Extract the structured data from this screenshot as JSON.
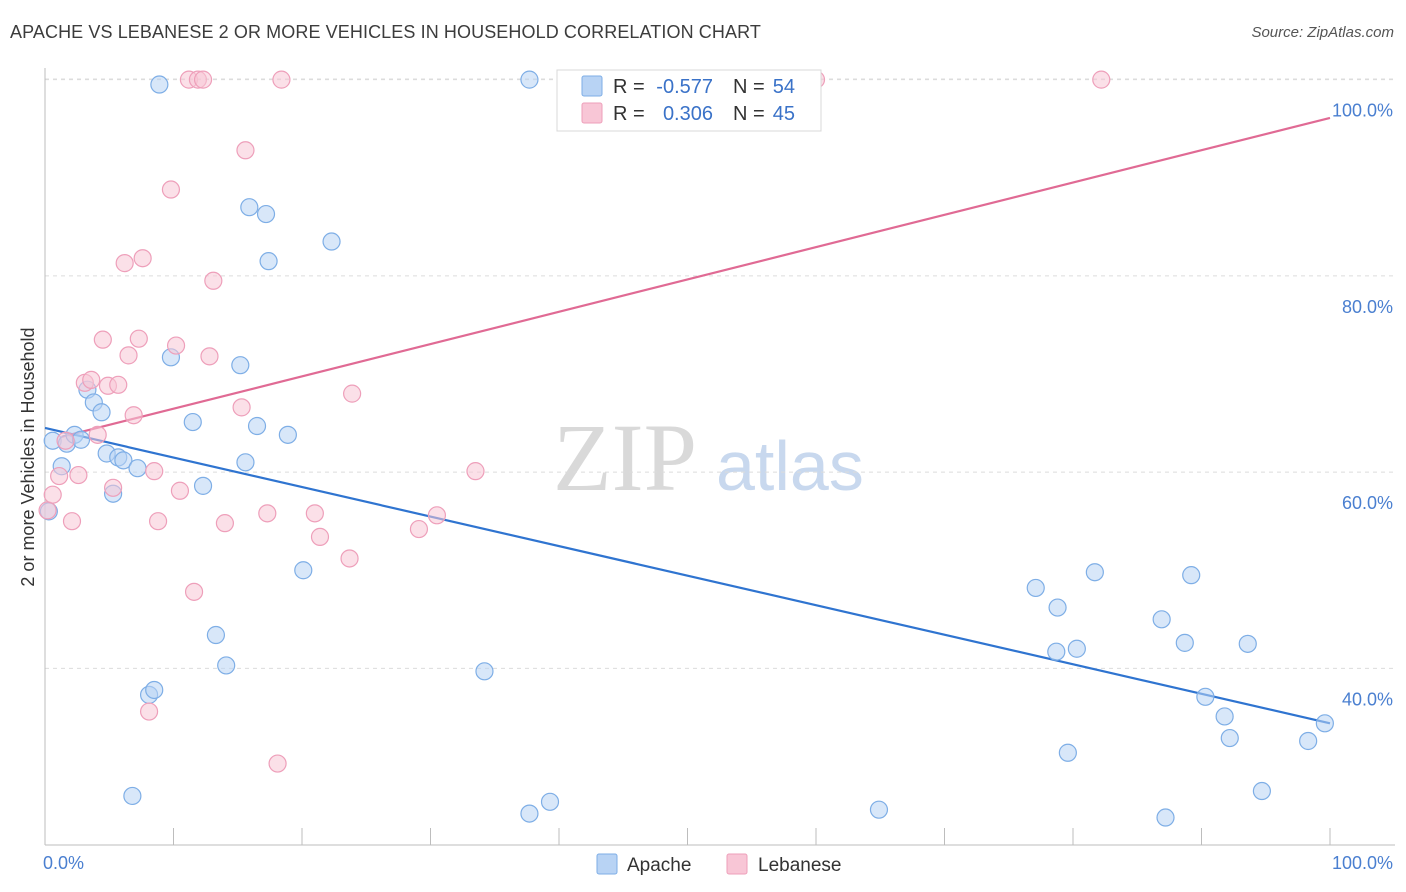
{
  "header": {
    "title": "APACHE VS LEBANESE 2 OR MORE VEHICLES IN HOUSEHOLD CORRELATION CHART",
    "source": "Source: ZipAtlas.com"
  },
  "watermark": {
    "zip": "ZIP",
    "atlas": "atlas"
  },
  "colors": {
    "apache_fill": "#b8d3f4",
    "apache_stroke": "#7eaee6",
    "apache_line": "#2f74d0",
    "lebanese_fill": "#f8c6d6",
    "lebanese_stroke": "#ee9fba",
    "lebanese_line": "#e06a94",
    "tick_label": "#4a7fd0"
  },
  "stats_legend": {
    "rows": [
      {
        "r_label": "R =",
        "r_value": "-0.577",
        "n_label": "N =",
        "n_value": "54"
      },
      {
        "r_label": "R =",
        "r_value": "0.306",
        "n_label": "N =",
        "n_value": "45"
      }
    ]
  },
  "chart_data": {
    "type": "scatter",
    "title": "APACHE VS LEBANESE 2 OR MORE VEHICLES IN HOUSEHOLD CORRELATION CHART",
    "xlabel": "",
    "ylabel": "2 or more Vehicles in Household",
    "xlim": [
      0,
      100
    ],
    "ylim": [
      22,
      102
    ],
    "x_tick_labels": [
      "0.0%",
      "100.0%"
    ],
    "y_ticks": [
      40,
      60,
      80,
      100
    ],
    "y_tick_labels": [
      "40.0%",
      "60.0%",
      "80.0%",
      "100.0%"
    ],
    "grid": "horizontal dashed",
    "legend": [
      "Apache",
      "Lebanese"
    ],
    "series": [
      {
        "name": "Apache",
        "r": -0.577,
        "n": 54,
        "trend": {
          "x": [
            0,
            100
          ],
          "y": [
            64.5,
            34.4
          ]
        },
        "points": [
          [
            0.3,
            56
          ],
          [
            0.6,
            63.2
          ],
          [
            1.3,
            60.6
          ],
          [
            1.7,
            62.9
          ],
          [
            2.3,
            63.8
          ],
          [
            2.8,
            63.3
          ],
          [
            3.3,
            68.4
          ],
          [
            3.8,
            67.1
          ],
          [
            4.4,
            66.1
          ],
          [
            4.8,
            61.9
          ],
          [
            5.3,
            57.8
          ],
          [
            5.7,
            61.5
          ],
          [
            6.1,
            61.2
          ],
          [
            7.2,
            60.4
          ],
          [
            6.8,
            27
          ],
          [
            8.1,
            37.3
          ],
          [
            8.5,
            37.8
          ],
          [
            8.9,
            99.5
          ],
          [
            9.8,
            71.7
          ],
          [
            11.5,
            65.1
          ],
          [
            12.3,
            58.6
          ],
          [
            13.3,
            43.4
          ],
          [
            14.1,
            40.3
          ],
          [
            15.2,
            70.9
          ],
          [
            15.6,
            61
          ],
          [
            15.9,
            87
          ],
          [
            16.5,
            64.7
          ],
          [
            17.2,
            86.3
          ],
          [
            17.4,
            81.5
          ],
          [
            18.9,
            63.8
          ],
          [
            20.1,
            50
          ],
          [
            22.3,
            83.5
          ],
          [
            34.2,
            39.7
          ],
          [
            37.7,
            100
          ],
          [
            37.7,
            25.2
          ],
          [
            39.3,
            26.4
          ],
          [
            64.9,
            25.6
          ],
          [
            77.1,
            48.2
          ],
          [
            78.7,
            41.7
          ],
          [
            78.8,
            46.2
          ],
          [
            79.6,
            31.4
          ],
          [
            80.3,
            42
          ],
          [
            81.7,
            49.8
          ],
          [
            86.9,
            45
          ],
          [
            87.2,
            24.8
          ],
          [
            88.7,
            42.6
          ],
          [
            89.2,
            49.5
          ],
          [
            90.3,
            37.1
          ],
          [
            91.8,
            35.1
          ],
          [
            92.2,
            32.9
          ],
          [
            93.6,
            42.5
          ],
          [
            94.7,
            27.5
          ],
          [
            98.3,
            32.6
          ],
          [
            99.6,
            34.4
          ]
        ]
      },
      {
        "name": "Lebanese",
        "r": 0.306,
        "n": 45,
        "trend": {
          "x": [
            1.3,
            100
          ],
          "y": [
            63.6,
            96.1
          ]
        },
        "points": [
          [
            0.2,
            56.1
          ],
          [
            0.6,
            57.7
          ],
          [
            1.1,
            59.6
          ],
          [
            1.6,
            63.2
          ],
          [
            2.1,
            55
          ],
          [
            2.6,
            59.7
          ],
          [
            3.1,
            69.1
          ],
          [
            3.6,
            69.4
          ],
          [
            4.1,
            63.8
          ],
          [
            4.5,
            73.5
          ],
          [
            4.9,
            68.8
          ],
          [
            5.3,
            58.4
          ],
          [
            5.7,
            68.9
          ],
          [
            6.2,
            81.3
          ],
          [
            6.5,
            71.9
          ],
          [
            6.9,
            65.8
          ],
          [
            7.3,
            73.6
          ],
          [
            7.6,
            81.8
          ],
          [
            8.1,
            35.6
          ],
          [
            8.5,
            60.1
          ],
          [
            8.8,
            55
          ],
          [
            9.8,
            88.8
          ],
          [
            10.2,
            72.9
          ],
          [
            10.5,
            58.1
          ],
          [
            11.2,
            100
          ],
          [
            11.6,
            47.8
          ],
          [
            11.9,
            100
          ],
          [
            12.3,
            100
          ],
          [
            12.8,
            71.8
          ],
          [
            13.1,
            79.5
          ],
          [
            14,
            54.8
          ],
          [
            15.3,
            66.6
          ],
          [
            15.6,
            92.8
          ],
          [
            17.3,
            55.8
          ],
          [
            18.1,
            30.3
          ],
          [
            18.4,
            100
          ],
          [
            21,
            55.8
          ],
          [
            21.4,
            53.4
          ],
          [
            23.7,
            51.2
          ],
          [
            23.9,
            68
          ],
          [
            29.1,
            54.2
          ],
          [
            30.5,
            55.6
          ],
          [
            33.5,
            60.1
          ],
          [
            60,
            100
          ],
          [
            82.2,
            100
          ]
        ]
      }
    ]
  },
  "bottom_legend": {
    "items": [
      "Apache",
      "Lebanese"
    ]
  }
}
